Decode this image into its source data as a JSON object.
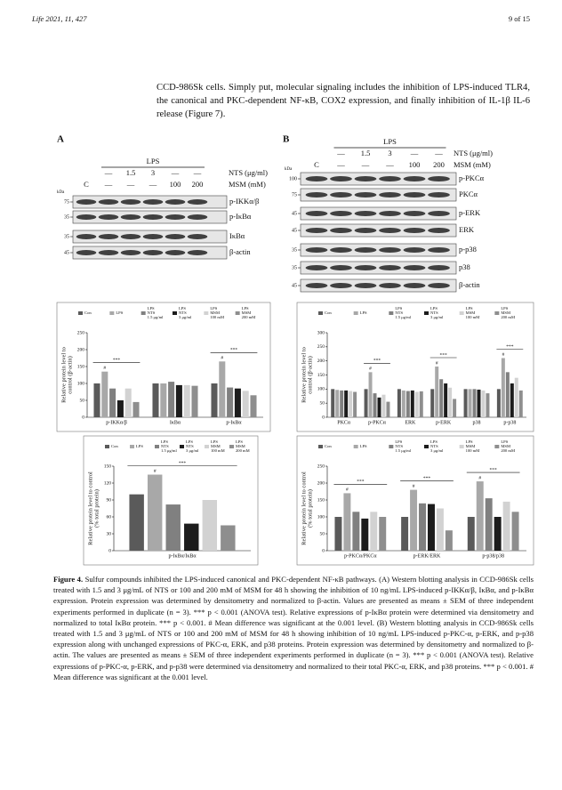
{
  "header": {
    "left": "Life 2021, 11, 427",
    "right": "9 of 15"
  },
  "paragraph": "CCD-986Sk cells. Simply put, molecular signaling includes the inhibition of LPS-induced TLR4, the canonical and PKC-dependent NF-κB, COX2 expression, and finally inhibition of IL-1β IL-6 release (Figure 7).",
  "panel_a": {
    "label": "A",
    "lps": "LPS",
    "nts_row": [
      "—",
      "1.5",
      "3",
      "—",
      "—"
    ],
    "nts_label": "NTS (μg/ml)",
    "msm_row": [
      "C",
      "—",
      "—",
      "—",
      "100",
      "200"
    ],
    "msm_label": "MSM (mM)",
    "kda": "kDa",
    "bands": [
      {
        "label": "p-IKKα/β",
        "kda": "75"
      },
      {
        "label": "p-IκBα",
        "kda": "35"
      },
      {
        "label": "IκBα",
        "kda": "35"
      },
      {
        "label": "β-actin",
        "kda": "45"
      }
    ]
  },
  "panel_b": {
    "label": "B",
    "lps": "LPS",
    "nts_row": [
      "—",
      "1.5",
      "3",
      "—",
      "—"
    ],
    "nts_label": "NTS (μg/ml)",
    "msm_row": [
      "C",
      "—",
      "—",
      "—",
      "100",
      "200"
    ],
    "msm_label": "MSM (mM)",
    "kda": "kDa",
    "bands": [
      {
        "label": "p-PKCα",
        "kda": "100"
      },
      {
        "label": "PKCα",
        "kda": "75"
      },
      {
        "label": "p-ERK",
        "kda": "45"
      },
      {
        "label": "ERK",
        "kda": "45"
      },
      {
        "label": "p-p38",
        "kda": "35"
      },
      {
        "label": "p38",
        "kda": "35"
      },
      {
        "label": "β-actin",
        "kda": "45"
      }
    ]
  },
  "chart_data": [
    {
      "type": "bar",
      "ylabel": "Relative protein level to\ncontrol (β-actin)",
      "categories": [
        "p-IKKα/β",
        "IκBα",
        "p-IκBα"
      ],
      "series": [
        {
          "name": "Con",
          "color": "#5a5a5a",
          "values": [
            100,
            100,
            100
          ]
        },
        {
          "name": "LPS",
          "color": "#a8a8a8",
          "values": [
            135,
            100,
            165
          ]
        },
        {
          "name": "LPS\nNTS\n1.5 μg/ml",
          "color": "#808080",
          "values": [
            85,
            105,
            88
          ]
        },
        {
          "name": "LPS\nNTS\n3 μg/ml",
          "color": "#1c1c1c",
          "values": [
            50,
            95,
            85
          ]
        },
        {
          "name": "LPS\nMSM\n100 mM",
          "color": "#d2d2d2",
          "values": [
            85,
            95,
            78
          ]
        },
        {
          "name": "LPS\nMSM\n200 mM",
          "color": "#8e8e8e",
          "values": [
            45,
            93,
            65
          ]
        }
      ],
      "ylim": [
        0,
        250
      ],
      "yticks": [
        0,
        50,
        100,
        150,
        200,
        250
      ],
      "brackets": [
        "***",
        null,
        "***"
      ],
      "lps_marks": [
        "#",
        null,
        "#"
      ]
    },
    {
      "type": "bar",
      "ylabel": "Relative protein level to\ncontrol (β-actin)",
      "categories": [
        "PKCα",
        "p-PKCα",
        "ERK",
        "p-ERK",
        "p38",
        "p-p38"
      ],
      "series": [
        {
          "name": "Con",
          "color": "#5a5a5a",
          "values": [
            100,
            100,
            100,
            100,
            100,
            100
          ]
        },
        {
          "name": "LPS",
          "color": "#a8a8a8",
          "values": [
            97,
            160,
            95,
            180,
            100,
            210
          ]
        },
        {
          "name": "LPS\nNTS\n1.5 μg/ml",
          "color": "#808080",
          "values": [
            95,
            85,
            93,
            135,
            100,
            160
          ]
        },
        {
          "name": "LPS\nNTS\n3 μg/ml",
          "color": "#1c1c1c",
          "values": [
            95,
            70,
            95,
            120,
            98,
            120
          ]
        },
        {
          "name": "LPS\nMSM\n100 mM",
          "color": "#d2d2d2",
          "values": [
            93,
            80,
            90,
            105,
            95,
            140
          ]
        },
        {
          "name": "LPS\nMSM\n200 mM",
          "color": "#8e8e8e",
          "values": [
            90,
            55,
            92,
            65,
            85,
            95
          ]
        }
      ],
      "ylim": [
        0,
        300
      ],
      "yticks": [
        0,
        50,
        100,
        150,
        200,
        250,
        300
      ],
      "brackets": [
        null,
        "***",
        null,
        "***",
        null,
        "***"
      ],
      "lps_marks": [
        null,
        "#",
        null,
        "#",
        null,
        "#"
      ]
    },
    {
      "type": "bar",
      "ylabel": "Relative protein level to control\n(% total protein)",
      "categories": [
        "p-IκBα/IκBα"
      ],
      "series": [
        {
          "name": "Con",
          "color": "#5a5a5a",
          "values": [
            100
          ]
        },
        {
          "name": "LPS",
          "color": "#a8a8a8",
          "values": [
            135
          ]
        },
        {
          "name": "LPS\nNTS\n1.5 μg/ml",
          "color": "#808080",
          "values": [
            82
          ]
        },
        {
          "name": "LPS\nNTS\n3 μg/ml",
          "color": "#1c1c1c",
          "values": [
            48
          ]
        },
        {
          "name": "LPS\nMSM\n100 mM",
          "color": "#d2d2d2",
          "values": [
            90
          ]
        },
        {
          "name": "LPS\nMSM\n200 mM",
          "color": "#8e8e8e",
          "values": [
            45
          ]
        }
      ],
      "ylim": [
        0,
        150
      ],
      "yticks": [
        0,
        30,
        60,
        90,
        120,
        150
      ],
      "brackets": [
        "***"
      ],
      "lps_marks": [
        "#"
      ]
    },
    {
      "type": "bar",
      "ylabel": "Relative protein level to control\n(% total protein)",
      "categories": [
        "p-PKCα/PKCα",
        "p-ERK/ERK",
        "p-p38/p38"
      ],
      "series": [
        {
          "name": "Con",
          "color": "#5a5a5a",
          "values": [
            100,
            100,
            100
          ]
        },
        {
          "name": "LPS",
          "color": "#a8a8a8",
          "values": [
            170,
            180,
            205
          ]
        },
        {
          "name": "LPS\nNTS\n1.5 μg/ml",
          "color": "#808080",
          "values": [
            115,
            140,
            155
          ]
        },
        {
          "name": "LPS\nNTS\n3 μg/ml",
          "color": "#1c1c1c",
          "values": [
            95,
            138,
            100
          ]
        },
        {
          "name": "LPS\nMSM\n100 mM",
          "color": "#d2d2d2",
          "values": [
            115,
            125,
            145
          ]
        },
        {
          "name": "LPS\nMSM\n200 mM",
          "color": "#8e8e8e",
          "values": [
            100,
            60,
            115
          ]
        }
      ],
      "ylim": [
        0,
        250
      ],
      "yticks": [
        0,
        50,
        100,
        150,
        200,
        250
      ],
      "brackets": [
        "***",
        "***",
        "***"
      ],
      "lps_marks": [
        "#",
        "#",
        "#"
      ]
    }
  ],
  "caption": {
    "label": "Figure 4.",
    "text": "Sulfur compounds inhibited the LPS-induced canonical and PKC-dependent NF-κB pathways. (A) Western blotting analysis in CCD-986Sk cells treated with 1.5 and 3 μg/mL of NTS or 100 and 200 mM of MSM for 48 h showing the inhibition of 10 ng/mL LPS-induced p-IKKα/β, IκBα, and p-IκBα expression. Protein expression was determined by densitometry and normalized to β-actin. Values are presented as means ± SEM of three independent experiments performed in duplicate (n = 3). *** p < 0.001 (ANOVA test). Relative expressions of p-IκBα protein were determined via densitometry and normalized to total IκBα protein. *** p < 0.001. # Mean difference was significant at the 0.001 level. (B) Western blotting analysis in CCD-986Sk cells treated with 1.5 and 3 μg/mL of NTS or 100 and 200 mM of MSM for 48 h showing inhibition of 10 ng/mL LPS-induced p-PKC-α, p-ERK, and p-p38 expression along with unchanged expressions of PKC-α, ERK, and p38 proteins. Protein expression was determined by densitometry and normalized to β-actin. The values are presented as means ± SEM of three independent experiments performed in duplicate (n = 3). *** p < 0.001 (ANOVA test). Relative expressions of p-PKC-α, p-ERK, and p-p38 were determined via densitometry and normalized to their total PKC-α, ERK, and p38 proteins. *** p < 0.001. # Mean difference was significant at the 0.001 level."
  }
}
